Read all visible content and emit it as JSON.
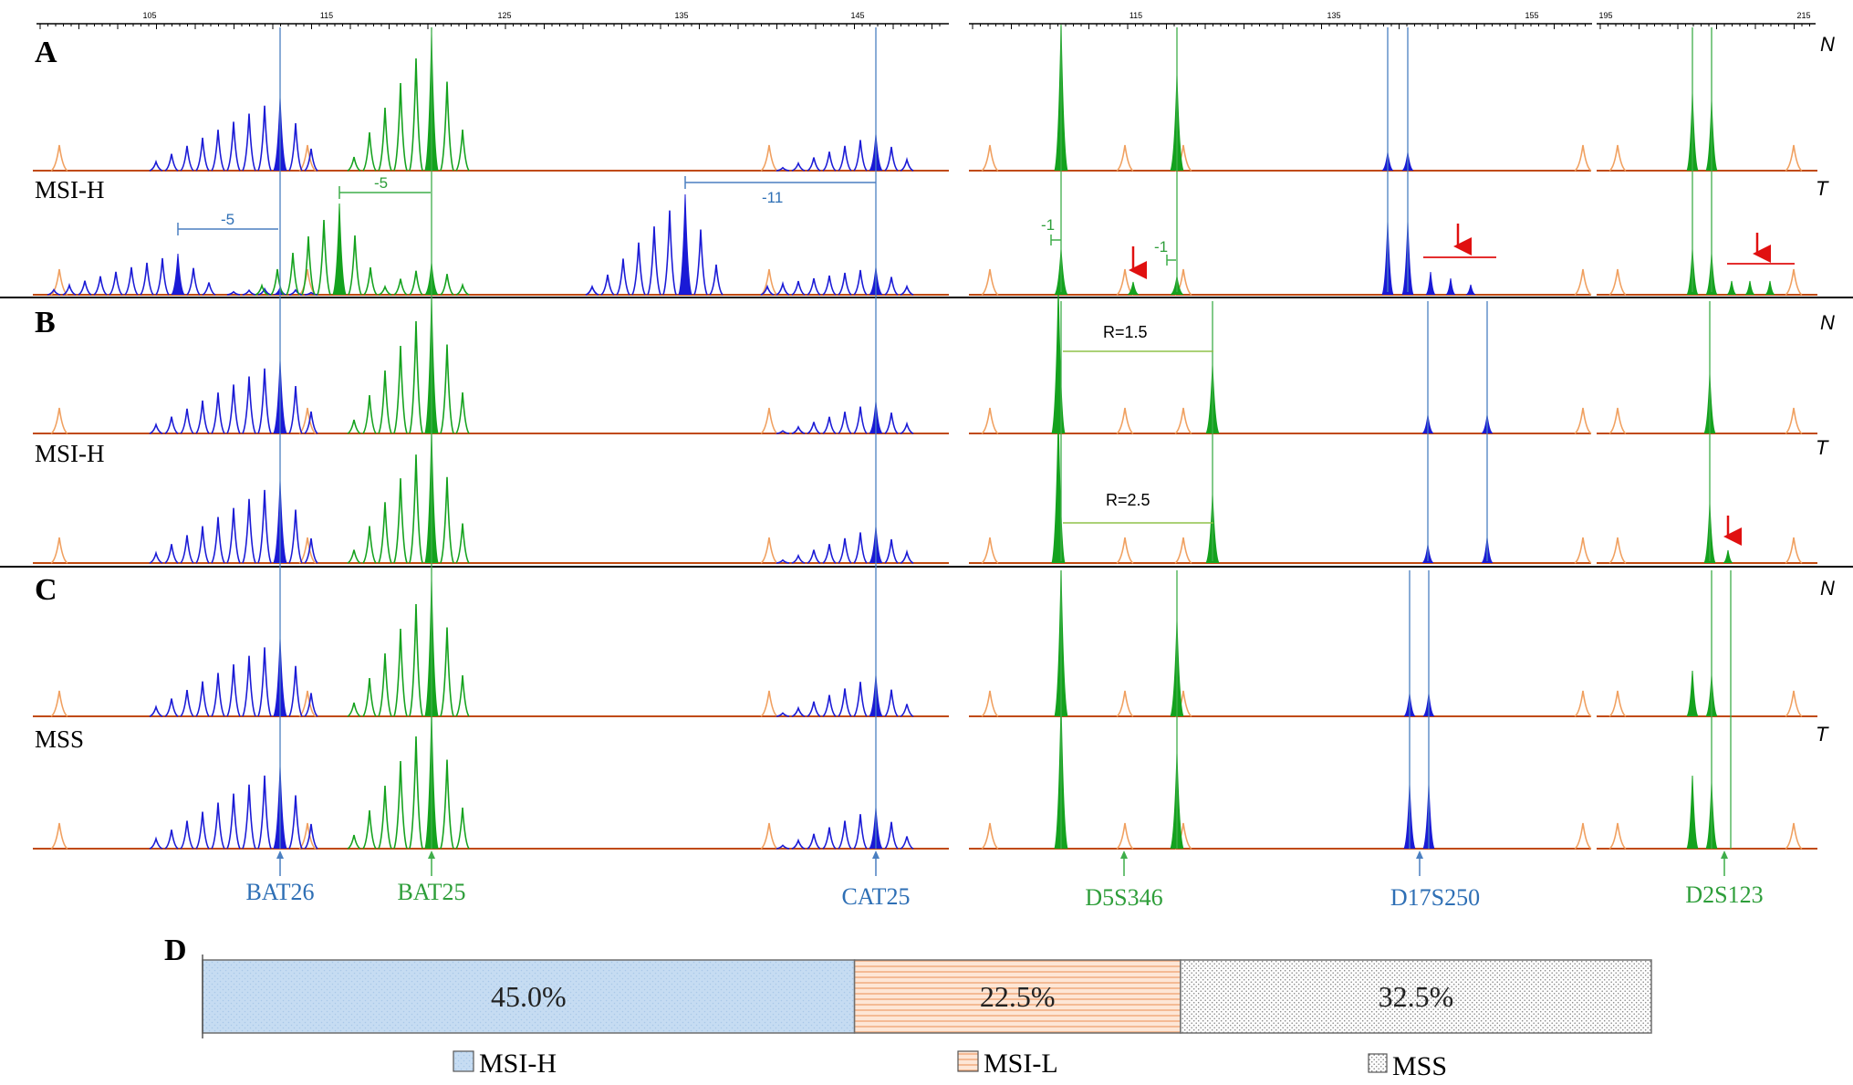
{
  "panels": [
    {
      "letter": "A",
      "normal_tag": "N",
      "tumor_tag": "T",
      "status": "MSI-H"
    },
    {
      "letter": "B",
      "normal_tag": "N",
      "tumor_tag": "T",
      "status": "MSI-H"
    },
    {
      "letter": "C",
      "normal_tag": "N",
      "tumor_tag": "T",
      "status": "MSS"
    }
  ],
  "size_axes": [
    {
      "ticks": [
        "105",
        "115",
        "125",
        "135",
        "145"
      ]
    },
    {
      "ticks": [
        "115",
        "135",
        "155"
      ]
    },
    {
      "ticks": [
        "195",
        "215"
      ]
    }
  ],
  "markers": [
    {
      "name": "BAT26",
      "color": "#2e6fb5"
    },
    {
      "name": "BAT25",
      "color": "#2e9e3a"
    },
    {
      "name": "CAT25",
      "color": "#2e6fb5"
    },
    {
      "name": "D5S346",
      "color": "#2e9e3a"
    },
    {
      "name": "D17S250",
      "color": "#2e6fb5"
    },
    {
      "name": "D2S123",
      "color": "#2e9e3a"
    }
  ],
  "annotations": {
    "shift_bat26": "-5",
    "shift_bat25": "-5",
    "shift_cat25": "-11",
    "shift_d5s346_a": "-1",
    "shift_d5s346_b": "-1",
    "ratio_normal": "R=1.5",
    "ratio_tumor": "R=2.5"
  },
  "colors": {
    "blue_dye": "#1a1ad6",
    "green_dye": "#14a21e",
    "orange_dye": "#f0a060",
    "guide_blue": "#4a7fc1",
    "guide_green": "#3fae4a",
    "arrow_red": "#e01010"
  },
  "chart_data": {
    "type": "bar",
    "panel_letter": "D",
    "orientation": "horizontal-stacked",
    "categories": [
      "MSI-H",
      "MSI-L",
      "MSS"
    ],
    "values": [
      45.0,
      22.5,
      32.5
    ],
    "value_labels": [
      "45.0%",
      "22.5%",
      "32.5%"
    ],
    "unit": "%",
    "fills": [
      "#c5dcf2",
      "#f8c9a8",
      "#ececec"
    ],
    "legend": [
      "MSI-H",
      "MSI-L",
      "MSS"
    ],
    "legend_position": "bottom"
  }
}
